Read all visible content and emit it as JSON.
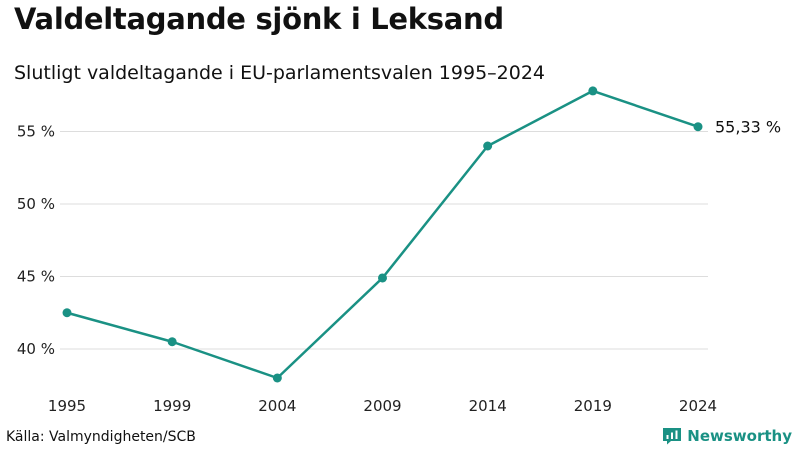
{
  "title": "Valdeltagande sjönk i Leksand",
  "subtitle": "Slutligt valdeltagande i EU-parlamentsvalen 1995–2024",
  "source": "Källa: Valmyndigheten/SCB",
  "brand": {
    "name": "Newsworthy",
    "icon": "newsworthy-logo-icon",
    "color": "#1a9184"
  },
  "line_color": "#1a9184",
  "chart_data": {
    "type": "line",
    "title": "Valdeltagande sjönk i Leksand",
    "subtitle": "Slutligt valdeltagande i EU-parlamentsvalen 1995–2024",
    "xlabel": "",
    "ylabel": "",
    "x": [
      "1995",
      "1999",
      "2004",
      "2009",
      "2014",
      "2019",
      "2024"
    ],
    "series": [
      {
        "name": "Valdeltagande",
        "values": [
          42.5,
          40.5,
          38.0,
          44.9,
          54.0,
          57.8,
          55.33
        ]
      }
    ],
    "ylim": [
      38,
      58
    ],
    "yticks": [
      {
        "value": 40,
        "label": "40 %"
      },
      {
        "value": 45,
        "label": "45 %"
      },
      {
        "value": 50,
        "label": "50 %"
      },
      {
        "value": 55,
        "label": "55 %"
      }
    ],
    "grid": true,
    "annotations": [
      {
        "x": "2024",
        "value": 55.33,
        "label": "55,33 %"
      }
    ]
  }
}
